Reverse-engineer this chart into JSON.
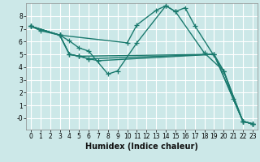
{
  "bg_color": "#cce8e8",
  "grid_color": "#ffffff",
  "line_color": "#1a7a6e",
  "marker": "+",
  "markersize": 4,
  "linewidth": 1.0,
  "xlabel": "Humidex (Indice chaleur)",
  "xlabel_fontsize": 7,
  "xlim": [
    -0.5,
    23.5
  ],
  "ylim": [
    -0.9,
    9.0
  ],
  "xticks": [
    0,
    1,
    2,
    3,
    4,
    5,
    6,
    7,
    8,
    9,
    10,
    11,
    12,
    13,
    14,
    15,
    16,
    17,
    18,
    19,
    20,
    21,
    22,
    23
  ],
  "yticks": [
    0,
    1,
    2,
    3,
    4,
    5,
    6,
    7,
    8
  ],
  "ytick_labels": [
    "-0",
    "1",
    "2",
    "3",
    "4",
    "5",
    "6",
    "7",
    "8"
  ],
  "tick_fontsize": 5.5,
  "lines": [
    {
      "x": [
        0,
        1,
        3,
        10,
        11,
        13,
        14,
        15,
        16,
        17,
        20,
        21,
        22,
        23
      ],
      "y": [
        7.2,
        6.85,
        6.5,
        5.9,
        7.3,
        8.45,
        8.8,
        8.35,
        8.65,
        7.25,
        3.7,
        1.5,
        -0.25,
        -0.45
      ]
    },
    {
      "x": [
        0,
        3,
        4,
        5,
        6,
        8,
        9,
        11,
        14,
        15,
        18,
        20,
        22,
        23
      ],
      "y": [
        7.2,
        6.5,
        6.05,
        5.5,
        5.25,
        3.45,
        3.7,
        5.9,
        8.8,
        8.35,
        5.1,
        3.7,
        -0.25,
        -0.45
      ]
    },
    {
      "x": [
        0,
        3,
        4,
        5,
        19,
        22,
        23
      ],
      "y": [
        7.2,
        6.5,
        5.0,
        4.85,
        5.0,
        -0.25,
        -0.45
      ]
    },
    {
      "x": [
        0,
        3,
        4,
        5,
        6,
        19,
        22,
        23
      ],
      "y": [
        7.2,
        6.5,
        5.0,
        4.85,
        4.65,
        5.0,
        -0.25,
        -0.45
      ]
    },
    {
      "x": [
        0,
        3,
        4,
        5,
        6,
        7,
        19,
        20,
        22,
        23
      ],
      "y": [
        7.2,
        6.5,
        5.0,
        4.85,
        4.65,
        4.5,
        5.0,
        3.7,
        -0.25,
        -0.45
      ]
    }
  ]
}
